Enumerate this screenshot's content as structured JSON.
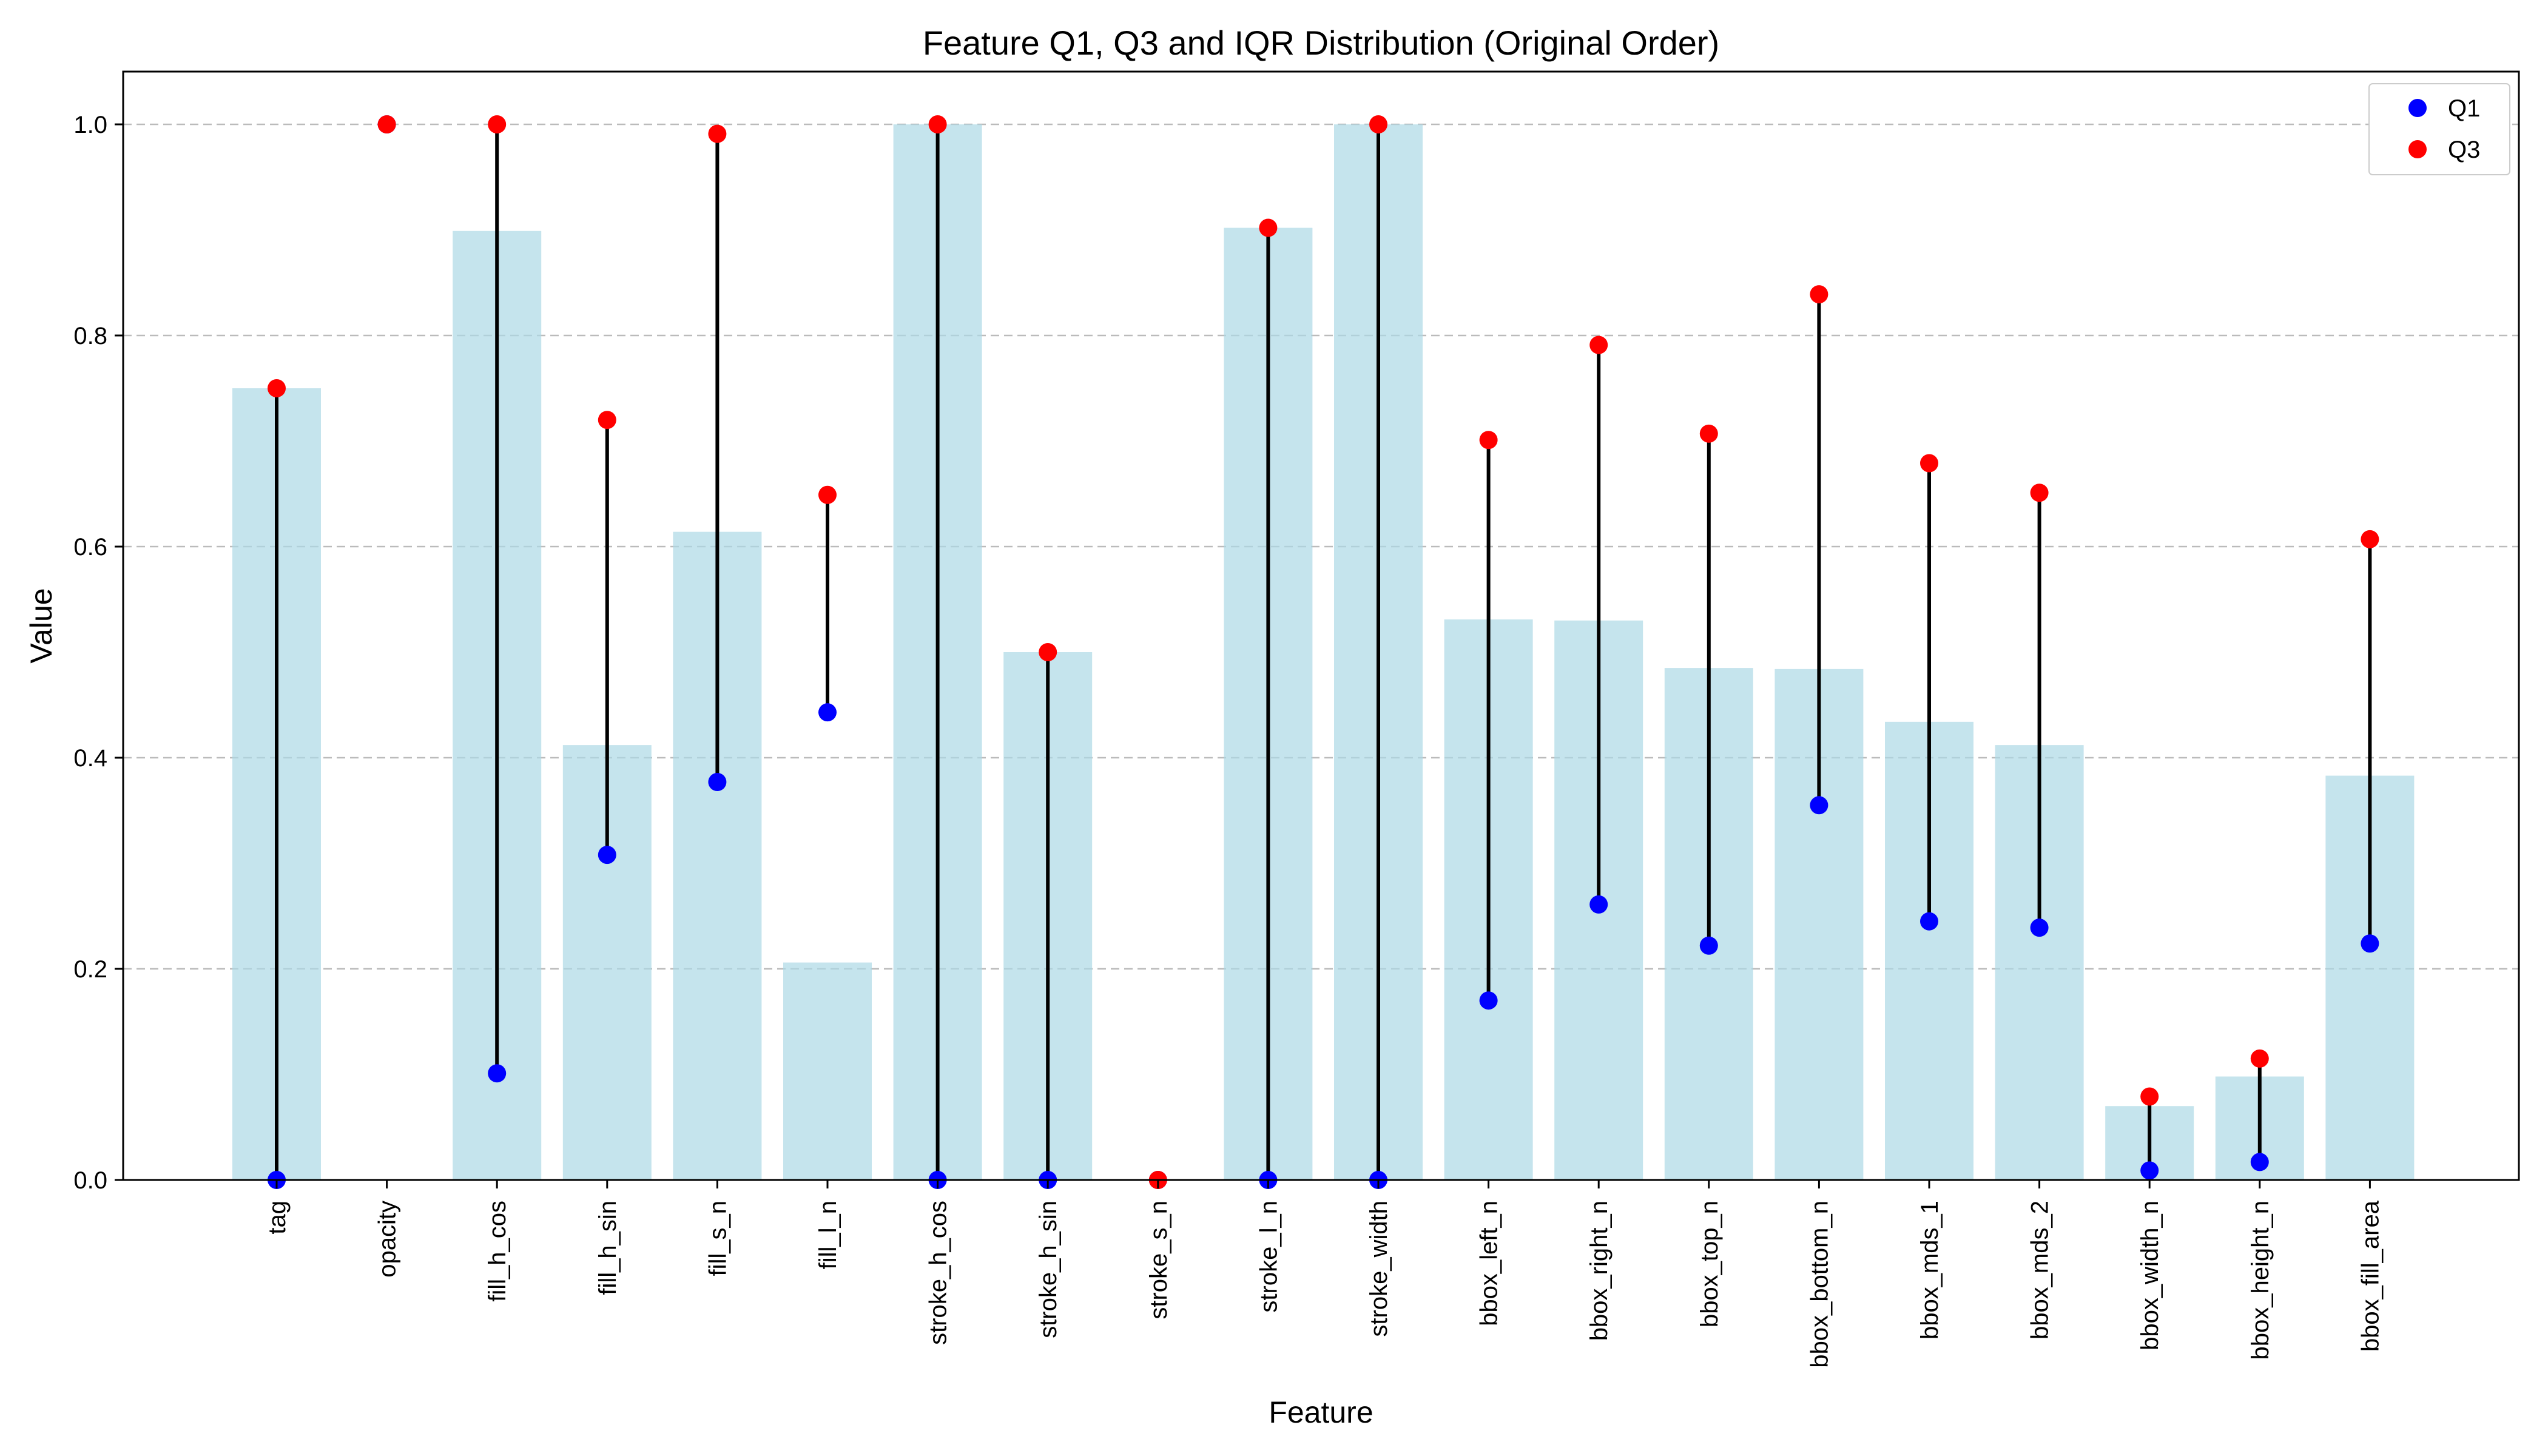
{
  "chart_data": {
    "type": "bar",
    "title": "Feature Q1, Q3 and IQR Distribution (Original Order)",
    "xlabel": "Feature",
    "ylabel": "Value",
    "ylim": [
      0,
      1.05
    ],
    "yticks": [
      "0.0",
      "0.2",
      "0.4",
      "0.6",
      "0.8",
      "1.0"
    ],
    "grid": "horizontal dashed",
    "legend_position": "top-right",
    "categories": [
      "tag",
      "opacity",
      "fill_h_cos",
      "fill_h_sin",
      "fill_s_n",
      "fill_l_n",
      "stroke_h_cos",
      "stroke_h_sin",
      "stroke_s_n",
      "stroke_l_n",
      "stroke_width",
      "bbox_left_n",
      "bbox_right_n",
      "bbox_top_n",
      "bbox_bottom_n",
      "bbox_mds_1",
      "bbox_mds_2",
      "bbox_width_n",
      "bbox_height_n",
      "bbox_fill_area"
    ],
    "q1": [
      0.0,
      1.0,
      0.101,
      0.308,
      0.377,
      0.443,
      0.0,
      0.0,
      0.0,
      0.0,
      0.0,
      0.17,
      0.261,
      0.222,
      0.355,
      0.245,
      0.239,
      0.009,
      0.017,
      0.224
    ],
    "q3": [
      0.75,
      1.0,
      1.0,
      0.72,
      0.991,
      0.649,
      1.0,
      0.5,
      0.0,
      0.902,
      1.0,
      0.701,
      0.791,
      0.707,
      0.839,
      0.679,
      0.651,
      0.079,
      0.115,
      0.607
    ],
    "iqr": [
      0.75,
      0.0,
      0.899,
      0.412,
      0.614,
      0.206,
      1.0,
      0.5,
      0.0,
      0.902,
      1.0,
      0.531,
      0.53,
      0.485,
      0.484,
      0.434,
      0.412,
      0.07,
      0.098,
      0.383
    ],
    "series": [
      {
        "name": "Q1",
        "color": "#0000ff"
      },
      {
        "name": "Q3",
        "color": "#ff0000"
      }
    ],
    "bar_color": "#add8e6",
    "range_line_color": "#000000"
  }
}
